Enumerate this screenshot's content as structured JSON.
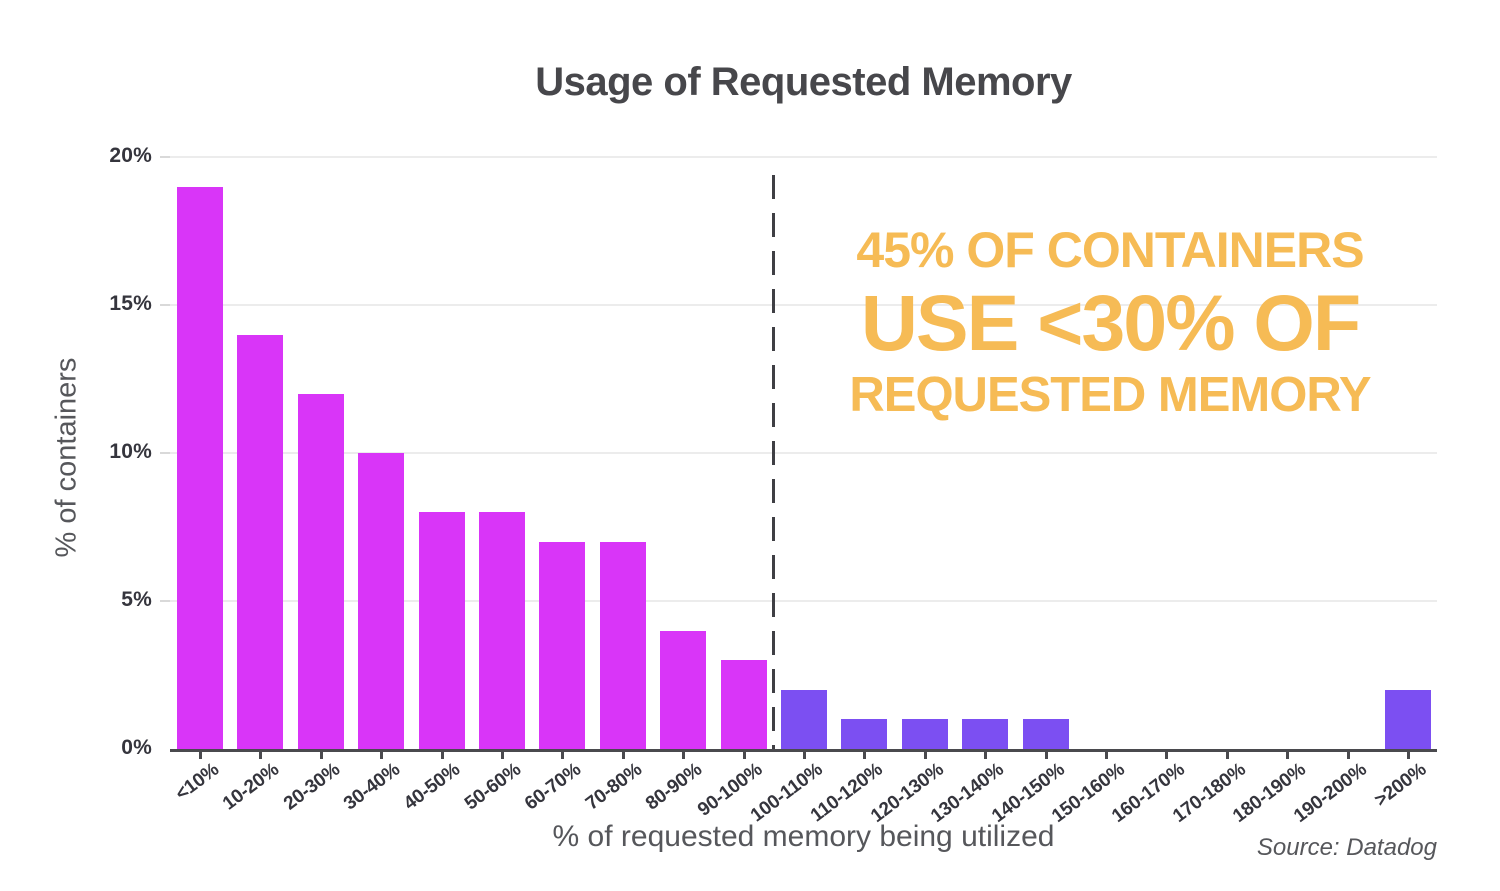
{
  "title": "Usage of Requested Memory",
  "source": "Source: Datadog",
  "annotation": {
    "line1": "45% OF CONTAINERS",
    "line2": "USE <30% OF",
    "line3": "REQUESTED MEMORY",
    "color": "#F6BB55"
  },
  "chart_data": {
    "type": "bar",
    "title": "Usage of Requested Memory",
    "xlabel": "% of requested memory being utilized",
    "ylabel": "% of containers",
    "categories": [
      "<10%",
      "10-20%",
      "20-30%",
      "30-40%",
      "40-50%",
      "50-60%",
      "60-70%",
      "70-80%",
      "80-90%",
      "90-100%",
      "100-110%",
      "110-120%",
      "120-130%",
      "130-140%",
      "140-150%",
      "150-160%",
      "160-170%",
      "170-180%",
      "180-190%",
      "190-200%",
      ">200%"
    ],
    "values": [
      19,
      14,
      12,
      10,
      8,
      8,
      7,
      7,
      4,
      3,
      2,
      1,
      1,
      1,
      1,
      0,
      0,
      0,
      0,
      0,
      2
    ],
    "ylim": [
      0,
      20
    ],
    "yticks": [
      "0%",
      "5%",
      "10%",
      "15%",
      "20%"
    ],
    "ytick_values": [
      0,
      5,
      10,
      15,
      20
    ],
    "grid": true,
    "legend": "none",
    "colors": {
      "bars_below_100pct": "#D935F8",
      "bars_100pct_and_above": "#7C4FF2",
      "color_split_index": 10,
      "gridline": "#ECECEC",
      "axis_line": "#4A4A4E",
      "tick_text": "#35353D",
      "axis_title_text": "#56575B",
      "title_text": "#47474B",
      "dashed_line": "#3F3F44"
    },
    "reference_line": {
      "position_between": [
        "90-100%",
        "100-110%"
      ],
      "style": "dashed",
      "orientation": "vertical"
    }
  }
}
